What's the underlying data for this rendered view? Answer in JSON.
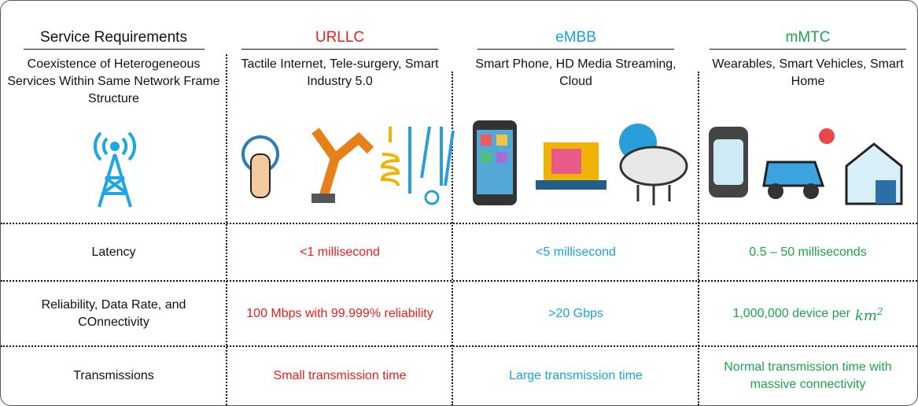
{
  "columns": [
    {
      "title": "Service Requirements",
      "description": "Coexistence of Heterogeneous Services Within Same Network Frame Structure",
      "color": "#111111"
    },
    {
      "title": "URLLC",
      "description": "Tactile Internet, Tele-surgery, Smart Industry 5.0",
      "color": "#ee1c1c"
    },
    {
      "title": "eMBB",
      "description": "Smart Phone, HD Media Streaming, Cloud",
      "color": "#19a3dc"
    },
    {
      "title": "mMTC",
      "description": "Wearables, Smart Vehicles, Smart Home",
      "color": "#1aa64a"
    }
  ],
  "rows": [
    {
      "label": "Latency",
      "cells": [
        "<1  millisecond",
        "<5  millisecond",
        "0.5 – 50 milliseconds"
      ]
    },
    {
      "label": "Reliability, Data Rate, and COnnectivity",
      "cells": [
        "100 Mbps with 99.999% reliability",
        ">20 Gbps",
        {
          "text": "1,000,000 device per",
          "unit": "km",
          "exponent": "2"
        }
      ]
    },
    {
      "label": "Transmissions",
      "cells": [
        "Small transmission time",
        "Large transmission time",
        "Normal transmission time with massive connectivity"
      ]
    }
  ]
}
